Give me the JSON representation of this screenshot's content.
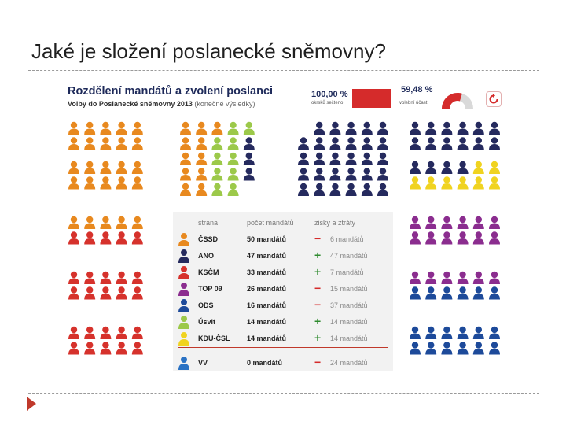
{
  "slide": {
    "title": "Jaké je složení poslanecké sněmovny?"
  },
  "infographic": {
    "title": "Rozdělení mandátů a zvolení poslanci",
    "subtitle": "Volby do Poslanecké sněmovny 2013",
    "subtitle_note": "(konečné výsledky)",
    "counted_value": "100,00 %",
    "counted_label": "okrsků sečteno",
    "turnout_value": "59,48 %",
    "turnout_label": "volební účast",
    "turnout_fraction": 0.5948
  },
  "legend": {
    "headers": [
      "strana",
      "počet mandátů",
      "zisky a ztráty"
    ],
    "rows": [
      {
        "party": "ČSSD",
        "seats": "50 mandátů",
        "sign": "−",
        "change": "6 mandátů",
        "color": "#e8891f"
      },
      {
        "party": "ANO",
        "seats": "47 mandátů",
        "sign": "+",
        "change": "47 mandátů",
        "color": "#252a5e"
      },
      {
        "party": "KSČM",
        "seats": "33 mandátů",
        "sign": "+",
        "change": "7 mandátů",
        "color": "#d6322c"
      },
      {
        "party": "TOP 09",
        "seats": "26 mandátů",
        "sign": "−",
        "change": "15 mandátů",
        "color": "#8b2d8f"
      },
      {
        "party": "ODS",
        "seats": "16 mandátů",
        "sign": "−",
        "change": "37 mandátů",
        "color": "#1d4a9a"
      },
      {
        "party": "Úsvit",
        "seats": "14 mandátů",
        "sign": "+",
        "change": "14 mandátů",
        "color": "#9cc94a"
      },
      {
        "party": "KDU-ČSL",
        "seats": "14 mandátů",
        "sign": "+",
        "change": "14 mandátů",
        "color": "#f0d320"
      },
      {
        "party": "VV",
        "seats": "0 mandátů",
        "sign": "−",
        "change": "24 mandátů",
        "color": "#2a72c4"
      }
    ]
  },
  "seat_counts": {
    "CSSD": 50,
    "ANO": 47,
    "KSCM": 33,
    "TOP09": 26,
    "ODS": 16,
    "Usvit": 14,
    "KDUCSL": 14
  },
  "colors": {
    "CSSD": "#e8891f",
    "ANO": "#252a5e",
    "KSCM": "#d6322c",
    "TOP09": "#8b2d8f",
    "ODS": "#1d4a9a",
    "Usvit": "#9cc94a",
    "KDUCSL": "#f0d320",
    "VV": "#2a72c4",
    "accent_red": "#d52b2b",
    "navy": "#1e2a5a"
  },
  "icons": {
    "seat": "person-icon",
    "refresh": "refresh-icon",
    "bullet": "arrow-bullet-icon"
  }
}
